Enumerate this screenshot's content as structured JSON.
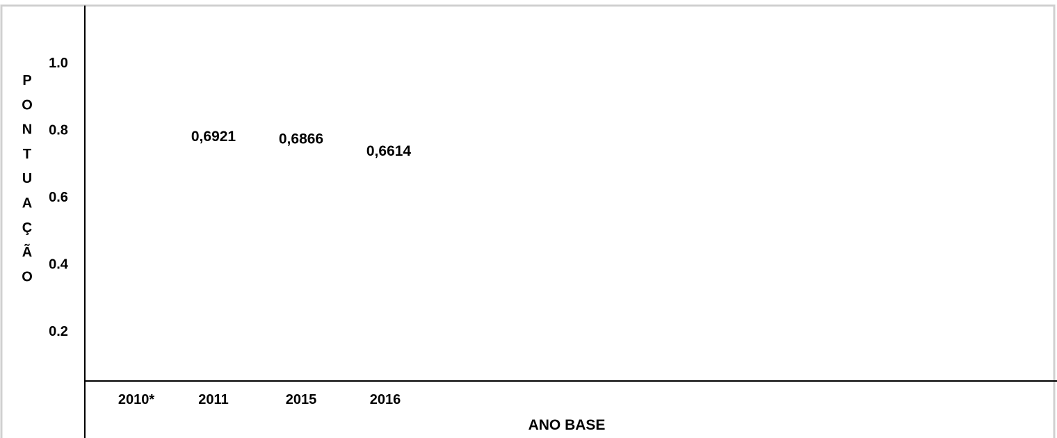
{
  "chart_data": {
    "type": "table",
    "title": "",
    "xlabel": "ANO BASE",
    "ylabel": "PONTUAÇÃO",
    "categories": [
      "2010*",
      "2011",
      "2015",
      "2016"
    ],
    "series": [
      {
        "values": [
          null,
          0.6921,
          0.6866,
          0.6614
        ],
        "labels": [
          "",
          "0,6921",
          "0,6866",
          "0,6614"
        ]
      }
    ],
    "yticks": [
      "1.0",
      "0.8",
      "0.6",
      "0.4",
      "0.2"
    ],
    "ylim": [
      0.2,
      1.0
    ],
    "grid": false,
    "legend": "none"
  }
}
